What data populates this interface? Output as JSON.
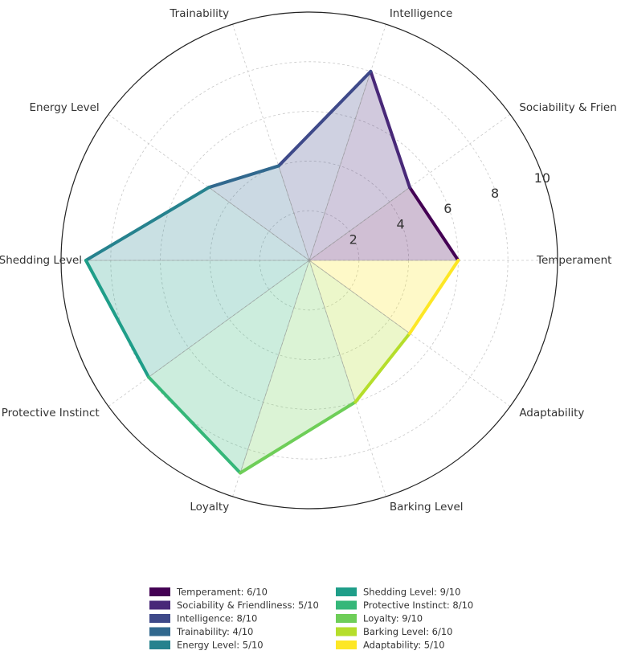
{
  "chart_data": {
    "type": "radar",
    "title": "",
    "categories": [
      "Temperament",
      "Sociability & Friendliness",
      "Intelligence",
      "Trainability",
      "Energy Level",
      "Shedding Level",
      "Protective Instinct",
      "Loyalty",
      "Barking Level",
      "Adaptability"
    ],
    "values": [
      6,
      5,
      8,
      4,
      5,
      9,
      8,
      9,
      6,
      5
    ],
    "rlim": [
      0,
      10
    ],
    "radial_ticks": [
      "2",
      "4",
      "6",
      "8",
      "10"
    ],
    "grid": true,
    "legend_position": "bottom",
    "legend_entries": [
      "Temperament: 6/10",
      "Sociability & Friendliness: 5/10",
      "Intelligence: 8/10",
      "Trainability: 4/10",
      "Energy Level: 5/10",
      "Shedding Level: 9/10",
      "Protective Instinct: 8/10",
      "Loyalty: 9/10",
      "Barking Level: 6/10",
      "Adaptability: 5/10"
    ],
    "colors": [
      "#440154",
      "#482878",
      "#3e4989",
      "#31688e",
      "#26828e",
      "#1f9e89",
      "#35b779",
      "#6ece58",
      "#b5de2b",
      "#fde725"
    ]
  }
}
